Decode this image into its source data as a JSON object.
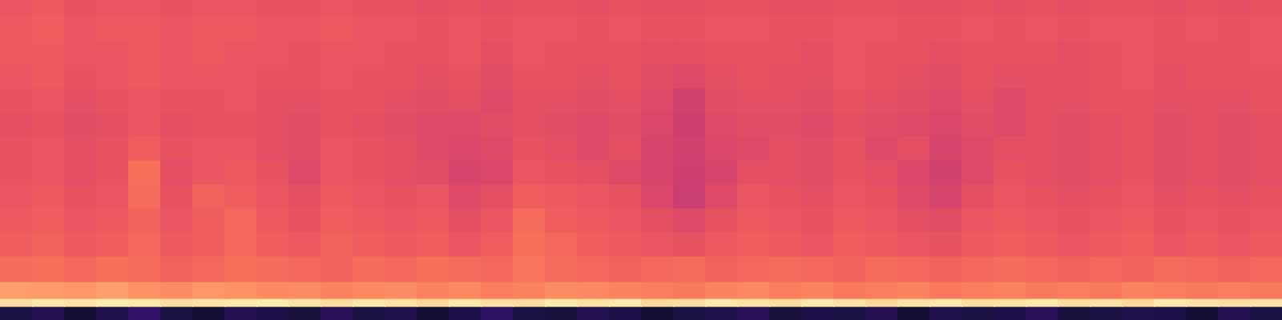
{
  "chart_data": {
    "type": "heatmap",
    "tick_labels": false,
    "xlim": [
      0,
      40
    ],
    "ylim": [
      0,
      40
    ],
    "zlim": [
      0,
      1
    ],
    "x_edges": [
      0,
      1,
      2,
      3,
      4,
      5,
      6,
      7,
      8,
      9,
      10,
      11,
      12,
      13,
      14,
      15,
      16,
      17,
      18,
      19,
      20,
      21,
      22,
      23,
      24,
      25,
      26,
      27,
      28,
      29,
      30,
      31,
      32,
      33,
      34,
      35,
      36,
      37,
      38,
      39,
      40
    ],
    "y_edges": [
      0,
      1.7,
      2.7,
      4.8,
      8,
      11,
      14,
      17,
      20,
      23,
      26,
      29,
      32,
      35,
      38,
      40
    ],
    "cells": [
      [
        0.12,
        0.15,
        0.1,
        0.14,
        0.18,
        0.12,
        0.1,
        0.15,
        0.13,
        0.11,
        0.16,
        0.12,
        0.14,
        0.1,
        0.13,
        0.17,
        0.12,
        0.11,
        0.15,
        0.13,
        0.1,
        0.12,
        0.14,
        0.16,
        0.11,
        0.13,
        0.12,
        0.15,
        0.1,
        0.14,
        0.12,
        0.13,
        0.16,
        0.11,
        0.12,
        0.14,
        0.13,
        0.1,
        0.15,
        0.12
      ],
      [
        0.93,
        0.95,
        0.94,
        0.96,
        0.95,
        0.93,
        0.94,
        0.95,
        0.96,
        0.94,
        0.93,
        0.95,
        0.94,
        0.92,
        0.95,
        0.94,
        0.93,
        0.96,
        0.94,
        0.95,
        0.92,
        0.93,
        0.95,
        0.94,
        0.93,
        0.95,
        0.94,
        0.92,
        0.94,
        0.95,
        0.93,
        0.94,
        0.95,
        0.93,
        0.94,
        0.92,
        0.95,
        0.94,
        0.93,
        0.94
      ],
      [
        0.8,
        0.79,
        0.78,
        0.8,
        0.77,
        0.76,
        0.78,
        0.77,
        0.75,
        0.76,
        0.74,
        0.75,
        0.76,
        0.74,
        0.75,
        0.73,
        0.74,
        0.76,
        0.75,
        0.74,
        0.73,
        0.72,
        0.74,
        0.75,
        0.73,
        0.74,
        0.72,
        0.73,
        0.74,
        0.72,
        0.73,
        0.74,
        0.72,
        0.73,
        0.72,
        0.74,
        0.73,
        0.72,
        0.73,
        0.72
      ],
      [
        0.69,
        0.7,
        0.68,
        0.7,
        0.69,
        0.67,
        0.68,
        0.7,
        0.69,
        0.68,
        0.67,
        0.69,
        0.68,
        0.7,
        0.69,
        0.68,
        0.71,
        0.69,
        0.68,
        0.67,
        0.68,
        0.69,
        0.67,
        0.68,
        0.69,
        0.68,
        0.67,
        0.69,
        0.68,
        0.67,
        0.68,
        0.69,
        0.68,
        0.67,
        0.68,
        0.67,
        0.69,
        0.68,
        0.67,
        0.68
      ],
      [
        0.66,
        0.67,
        0.65,
        0.66,
        0.68,
        0.65,
        0.66,
        0.68,
        0.66,
        0.65,
        0.67,
        0.66,
        0.65,
        0.66,
        0.64,
        0.66,
        0.7,
        0.68,
        0.66,
        0.65,
        0.64,
        0.63,
        0.65,
        0.66,
        0.65,
        0.64,
        0.66,
        0.65,
        0.64,
        0.63,
        0.65,
        0.66,
        0.65,
        0.64,
        0.65,
        0.66,
        0.64,
        0.65,
        0.64,
        0.65
      ],
      [
        0.65,
        0.66,
        0.64,
        0.65,
        0.67,
        0.64,
        0.66,
        0.68,
        0.65,
        0.63,
        0.66,
        0.65,
        0.64,
        0.65,
        0.62,
        0.64,
        0.69,
        0.66,
        0.65,
        0.64,
        0.62,
        0.6,
        0.63,
        0.65,
        0.64,
        0.63,
        0.65,
        0.64,
        0.62,
        0.61,
        0.64,
        0.65,
        0.64,
        0.63,
        0.64,
        0.65,
        0.63,
        0.64,
        0.63,
        0.64
      ],
      [
        0.64,
        0.65,
        0.63,
        0.64,
        0.69,
        0.63,
        0.67,
        0.66,
        0.64,
        0.62,
        0.65,
        0.64,
        0.63,
        0.64,
        0.6,
        0.62,
        0.66,
        0.65,
        0.64,
        0.63,
        0.59,
        0.55,
        0.6,
        0.64,
        0.63,
        0.62,
        0.64,
        0.63,
        0.6,
        0.58,
        0.62,
        0.64,
        0.63,
        0.62,
        0.63,
        0.64,
        0.62,
        0.63,
        0.62,
        0.63
      ],
      [
        0.63,
        0.64,
        0.62,
        0.63,
        0.7,
        0.62,
        0.64,
        0.65,
        0.63,
        0.6,
        0.64,
        0.63,
        0.62,
        0.61,
        0.58,
        0.59,
        0.64,
        0.63,
        0.62,
        0.6,
        0.58,
        0.56,
        0.58,
        0.62,
        0.62,
        0.61,
        0.63,
        0.62,
        0.59,
        0.57,
        0.6,
        0.63,
        0.62,
        0.61,
        0.62,
        0.63,
        0.61,
        0.62,
        0.61,
        0.62
      ],
      [
        0.63,
        0.64,
        0.62,
        0.63,
        0.66,
        0.63,
        0.64,
        0.64,
        0.62,
        0.61,
        0.64,
        0.63,
        0.62,
        0.6,
        0.59,
        0.6,
        0.63,
        0.62,
        0.6,
        0.62,
        0.58,
        0.57,
        0.59,
        0.6,
        0.62,
        0.61,
        0.63,
        0.6,
        0.62,
        0.58,
        0.6,
        0.62,
        0.62,
        0.61,
        0.62,
        0.63,
        0.61,
        0.62,
        0.61,
        0.62
      ],
      [
        0.62,
        0.63,
        0.61,
        0.62,
        0.64,
        0.62,
        0.63,
        0.63,
        0.62,
        0.61,
        0.63,
        0.62,
        0.61,
        0.6,
        0.6,
        0.61,
        0.62,
        0.61,
        0.6,
        0.61,
        0.59,
        0.56,
        0.6,
        0.61,
        0.61,
        0.6,
        0.62,
        0.61,
        0.6,
        0.59,
        0.61,
        0.6,
        0.62,
        0.61,
        0.62,
        0.63,
        0.61,
        0.62,
        0.61,
        0.62
      ],
      [
        0.63,
        0.64,
        0.62,
        0.63,
        0.64,
        0.63,
        0.63,
        0.64,
        0.62,
        0.62,
        0.63,
        0.63,
        0.62,
        0.61,
        0.62,
        0.6,
        0.62,
        0.62,
        0.61,
        0.62,
        0.6,
        0.57,
        0.61,
        0.62,
        0.62,
        0.61,
        0.63,
        0.62,
        0.61,
        0.6,
        0.62,
        0.6,
        0.62,
        0.62,
        0.63,
        0.63,
        0.62,
        0.62,
        0.62,
        0.63
      ],
      [
        0.64,
        0.65,
        0.63,
        0.64,
        0.65,
        0.64,
        0.64,
        0.64,
        0.63,
        0.63,
        0.64,
        0.63,
        0.63,
        0.62,
        0.63,
        0.61,
        0.63,
        0.63,
        0.62,
        0.63,
        0.61,
        0.6,
        0.62,
        0.63,
        0.62,
        0.62,
        0.64,
        0.63,
        0.62,
        0.61,
        0.63,
        0.62,
        0.62,
        0.62,
        0.63,
        0.64,
        0.62,
        0.63,
        0.63,
        0.63
      ],
      [
        0.65,
        0.65,
        0.64,
        0.64,
        0.65,
        0.64,
        0.65,
        0.64,
        0.64,
        0.63,
        0.64,
        0.64,
        0.63,
        0.63,
        0.64,
        0.62,
        0.64,
        0.63,
        0.63,
        0.63,
        0.62,
        0.62,
        0.63,
        0.63,
        0.63,
        0.62,
        0.64,
        0.63,
        0.63,
        0.62,
        0.63,
        0.63,
        0.63,
        0.62,
        0.63,
        0.64,
        0.63,
        0.63,
        0.63,
        0.64
      ],
      [
        0.65,
        0.66,
        0.64,
        0.65,
        0.65,
        0.64,
        0.65,
        0.65,
        0.64,
        0.64,
        0.65,
        0.64,
        0.64,
        0.63,
        0.64,
        0.63,
        0.64,
        0.64,
        0.63,
        0.64,
        0.63,
        0.63,
        0.64,
        0.64,
        0.63,
        0.63,
        0.64,
        0.64,
        0.63,
        0.63,
        0.64,
        0.63,
        0.64,
        0.63,
        0.64,
        0.64,
        0.63,
        0.64,
        0.63,
        0.64
      ],
      [
        0.64,
        0.65,
        0.63,
        0.64,
        0.64,
        0.63,
        0.64,
        0.64,
        0.63,
        0.63,
        0.64,
        0.63,
        0.63,
        0.62,
        0.63,
        0.62,
        0.63,
        0.63,
        0.62,
        0.63,
        0.62,
        0.62,
        0.63,
        0.63,
        0.62,
        0.62,
        0.63,
        0.63,
        0.62,
        0.62,
        0.63,
        0.62,
        0.63,
        0.62,
        0.63,
        0.63,
        0.62,
        0.63,
        0.62,
        0.63
      ]
    ]
  }
}
